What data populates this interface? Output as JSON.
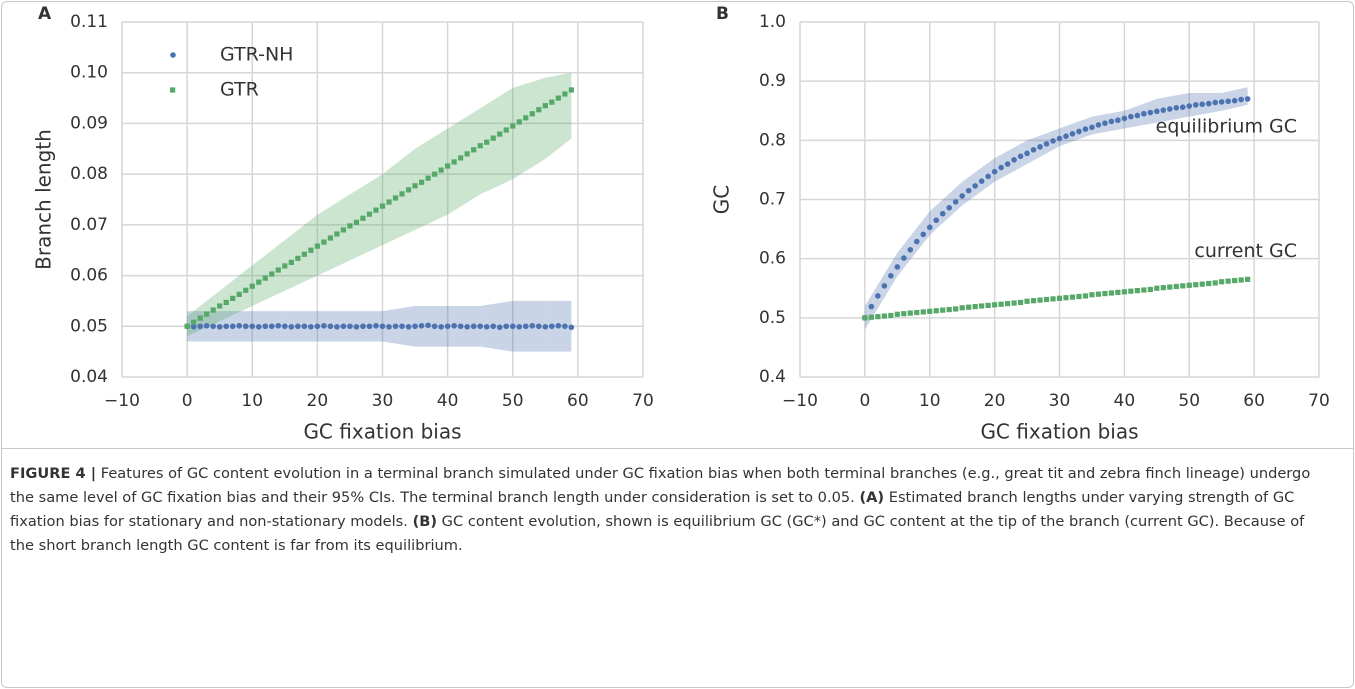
{
  "chart_data": [
    {
      "type": "scatter",
      "panel": "A",
      "xlabel": "GC fixation bias",
      "ylabel": "Branch length",
      "xlim": [
        -10,
        70
      ],
      "xticks": [
        {
          "value": -10,
          "label": "−10"
        },
        0,
        10,
        20,
        30,
        40,
        50,
        60,
        70
      ],
      "ylim": [
        0.04,
        0.11
      ],
      "yticks": [
        0.04,
        0.05,
        0.06,
        0.07,
        0.08,
        0.09,
        {
          "value": 0.1,
          "label": "0.10"
        },
        0.11
      ],
      "grid": true,
      "legend": "upper left",
      "x": [
        0,
        1,
        2,
        3,
        4,
        5,
        6,
        7,
        8,
        9,
        10,
        11,
        12,
        13,
        14,
        15,
        16,
        17,
        18,
        19,
        20,
        21,
        22,
        23,
        24,
        25,
        26,
        27,
        28,
        29,
        30,
        31,
        32,
        33,
        34,
        35,
        36,
        37,
        38,
        39,
        40,
        41,
        42,
        43,
        44,
        45,
        46,
        47,
        48,
        49,
        50,
        51,
        52,
        53,
        54,
        55,
        56,
        57,
        58,
        59
      ],
      "band_x": [
        0,
        5,
        10,
        15,
        20,
        25,
        30,
        35,
        40,
        45,
        50,
        55,
        59
      ],
      "series": [
        {
          "name": "GTR-NH",
          "color": "#4c72b0",
          "marker": "circle",
          "values": [
            0.05,
            0.0499,
            0.05,
            0.0501,
            0.05,
            0.0499,
            0.05,
            0.05,
            0.0501,
            0.05,
            0.05,
            0.0499,
            0.05,
            0.05,
            0.0501,
            0.05,
            0.0499,
            0.05,
            0.05,
            0.0499,
            0.05,
            0.0501,
            0.05,
            0.0499,
            0.05,
            0.05,
            0.0499,
            0.05,
            0.05,
            0.0501,
            0.05,
            0.0499,
            0.05,
            0.05,
            0.0499,
            0.05,
            0.0501,
            0.0502,
            0.05,
            0.0499,
            0.05,
            0.0501,
            0.05,
            0.0499,
            0.05,
            0.05,
            0.0499,
            0.05,
            0.0498,
            0.05,
            0.05,
            0.0499,
            0.05,
            0.0501,
            0.05,
            0.0499,
            0.05,
            0.0501,
            0.05,
            0.0498
          ],
          "band_lower": [
            0.047,
            0.047,
            0.047,
            0.047,
            0.047,
            0.047,
            0.047,
            0.046,
            0.046,
            0.046,
            0.045,
            0.045,
            0.045
          ],
          "band_upper": [
            0.053,
            0.053,
            0.053,
            0.053,
            0.053,
            0.053,
            0.053,
            0.054,
            0.054,
            0.054,
            0.055,
            0.055,
            0.055
          ]
        },
        {
          "name": "GTR",
          "color": "#55a868",
          "marker": "square",
          "values": [
            0.05,
            0.0508,
            0.0516,
            0.0524,
            0.0532,
            0.054,
            0.0547,
            0.0555,
            0.0563,
            0.0571,
            0.0579,
            0.0587,
            0.0595,
            0.0603,
            0.0611,
            0.0619,
            0.0626,
            0.0634,
            0.0642,
            0.065,
            0.0658,
            0.0666,
            0.0674,
            0.0682,
            0.069,
            0.0698,
            0.0705,
            0.0713,
            0.0721,
            0.0729,
            0.0737,
            0.0745,
            0.0753,
            0.0761,
            0.0769,
            0.0777,
            0.0784,
            0.0792,
            0.08,
            0.0808,
            0.0816,
            0.0824,
            0.0832,
            0.084,
            0.0848,
            0.0856,
            0.0863,
            0.0871,
            0.0879,
            0.0887,
            0.0895,
            0.0903,
            0.0911,
            0.0919,
            0.0927,
            0.0935,
            0.0942,
            0.095,
            0.0958,
            0.0966
          ],
          "band_lower": [
            0.048,
            0.051,
            0.054,
            0.057,
            0.06,
            0.063,
            0.066,
            0.069,
            0.072,
            0.076,
            0.079,
            0.083,
            0.087
          ],
          "band_upper": [
            0.052,
            0.057,
            0.062,
            0.067,
            0.072,
            0.076,
            0.08,
            0.085,
            0.089,
            0.093,
            0.097,
            0.099,
            0.1
          ]
        }
      ]
    },
    {
      "type": "scatter",
      "panel": "B",
      "xlabel": "GC fixation bias",
      "ylabel": "GC",
      "xlim": [
        -10,
        70
      ],
      "xticks": [
        {
          "value": -10,
          "label": "−10"
        },
        0,
        10,
        20,
        30,
        40,
        50,
        60,
        70
      ],
      "ylim": [
        0.4,
        1.0
      ],
      "yticks": [
        0.4,
        0.5,
        0.6,
        0.7,
        0.8,
        0.9,
        {
          "value": 1.0,
          "label": "1.0"
        }
      ],
      "grid": true,
      "legend": "end-labels",
      "x": [
        0,
        1,
        2,
        3,
        4,
        5,
        6,
        7,
        8,
        9,
        10,
        11,
        12,
        13,
        14,
        15,
        16,
        17,
        18,
        19,
        20,
        21,
        22,
        23,
        24,
        25,
        26,
        27,
        28,
        29,
        30,
        31,
        32,
        33,
        34,
        35,
        36,
        37,
        38,
        39,
        40,
        41,
        42,
        43,
        44,
        45,
        46,
        47,
        48,
        49,
        50,
        51,
        52,
        53,
        54,
        55,
        56,
        57,
        58,
        59
      ],
      "band_x": [
        0,
        5,
        10,
        15,
        20,
        25,
        30,
        35,
        40,
        45,
        50,
        55,
        59
      ],
      "series": [
        {
          "name": "equilibrium GC",
          "color": "#4c72b0",
          "marker": "circle",
          "values": [
            0.5,
            0.519,
            0.537,
            0.554,
            0.571,
            0.586,
            0.601,
            0.615,
            0.629,
            0.641,
            0.653,
            0.665,
            0.676,
            0.686,
            0.696,
            0.706,
            0.715,
            0.723,
            0.731,
            0.739,
            0.747,
            0.754,
            0.76,
            0.767,
            0.773,
            0.778,
            0.784,
            0.789,
            0.794,
            0.799,
            0.803,
            0.807,
            0.811,
            0.815,
            0.819,
            0.822,
            0.826,
            0.829,
            0.832,
            0.834,
            0.837,
            0.84,
            0.842,
            0.845,
            0.847,
            0.849,
            0.851,
            0.853,
            0.855,
            0.856,
            0.858,
            0.86,
            0.861,
            0.862,
            0.864,
            0.865,
            0.866,
            0.867,
            0.869,
            0.87
          ],
          "band_lower": [
            0.48,
            0.57,
            0.64,
            0.69,
            0.73,
            0.76,
            0.79,
            0.81,
            0.82,
            0.83,
            0.84,
            0.85,
            0.86
          ],
          "band_upper": [
            0.52,
            0.61,
            0.68,
            0.73,
            0.77,
            0.8,
            0.82,
            0.84,
            0.85,
            0.87,
            0.88,
            0.88,
            0.89
          ]
        },
        {
          "name": "current GC",
          "color": "#55a868",
          "marker": "square",
          "values": [
            0.5,
            0.501,
            0.502,
            0.503,
            0.504,
            0.506,
            0.507,
            0.508,
            0.509,
            0.51,
            0.511,
            0.512,
            0.513,
            0.514,
            0.515,
            0.517,
            0.518,
            0.519,
            0.52,
            0.521,
            0.522,
            0.523,
            0.524,
            0.525,
            0.526,
            0.528,
            0.529,
            0.53,
            0.531,
            0.532,
            0.533,
            0.534,
            0.535,
            0.536,
            0.537,
            0.539,
            0.54,
            0.541,
            0.542,
            0.543,
            0.544,
            0.545,
            0.546,
            0.547,
            0.548,
            0.55,
            0.551,
            0.552,
            0.553,
            0.554,
            0.555,
            0.556,
            0.557,
            0.558,
            0.559,
            0.561,
            0.562,
            0.563,
            0.564,
            0.565
          ]
        }
      ]
    }
  ],
  "caption": [
    {
      "text": "FIGURE 4 |",
      "bold": true
    },
    {
      "text": " Features of GC content evolution in a terminal branch simulated under GC fixation bias when both terminal branches (e.g., great tit and zebra finch lineage) undergo the same level of GC fixation bias and their 95% CIs. The terminal branch length under consideration is set to 0.05. ",
      "bold": false
    },
    {
      "text": "(A)",
      "bold": true
    },
    {
      "text": " Estimated branch lengths under varying strength of GC fixation bias for stationary and non-stationary models. ",
      "bold": false
    },
    {
      "text": "(B)",
      "bold": true
    },
    {
      "text": " GC content evolution, shown is equilibrium GC (GC*) and GC content at the tip of the branch (current GC). Because of the short branch length GC content is far from its equilibrium.",
      "bold": false
    }
  ]
}
